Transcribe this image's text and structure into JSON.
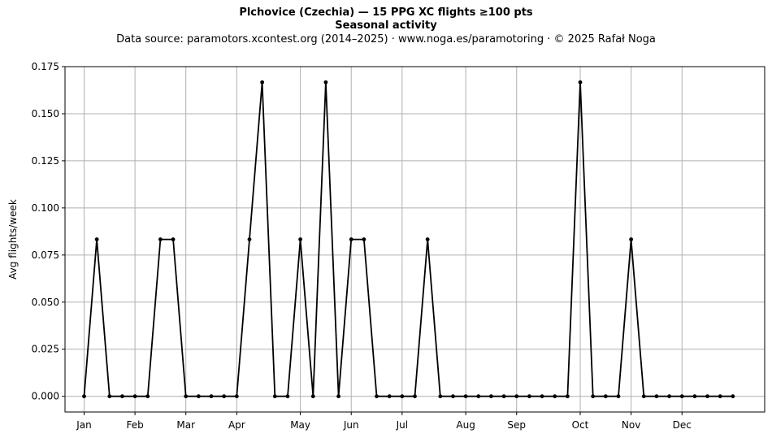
{
  "header": {
    "title": "Plchovice (Czechia)  —  15 PPG XC flights ≥100 pts",
    "subtitle": "Seasonal activity",
    "source": "Data source: paramotors.xcontest.org (2014–2025)  ·  www.noga.es/paramotoring  ·  © 2025 Rafał Noga"
  },
  "chart_data": {
    "type": "line",
    "title": "Plchovice (Czechia)  —  15 PPG XC flights ≥100 pts",
    "subtitle": "Seasonal activity",
    "xlabel": "",
    "ylabel": "Avg flights/week",
    "ylim": [
      -0.00833,
      0.175
    ],
    "xlim": [
      -1.5,
      53.5
    ],
    "y_ticks": [
      0.0,
      0.025,
      0.05,
      0.075,
      0.1,
      0.125,
      0.15,
      0.175
    ],
    "y_tick_labels": [
      "0.000",
      "0.025",
      "0.050",
      "0.075",
      "0.100",
      "0.125",
      "0.150",
      "0.175"
    ],
    "x_ticks": [
      0,
      4,
      8,
      12,
      17,
      21,
      25,
      30,
      34,
      39,
      43,
      47
    ],
    "x_tick_labels": [
      "Jan",
      "Feb",
      "Mar",
      "Apr",
      "May",
      "Jun",
      "Jul",
      "Aug",
      "Sep",
      "Oct",
      "Nov",
      "Dec"
    ],
    "grid": true,
    "line_color": "#000000",
    "series": [
      {
        "x": [
          0,
          1,
          2,
          3,
          4,
          5,
          6,
          7,
          8,
          9,
          10,
          11,
          12,
          13,
          14,
          15,
          16,
          17,
          18,
          19,
          20,
          21,
          22,
          23,
          24,
          25,
          26,
          27,
          28,
          29,
          30,
          31,
          32,
          33,
          34,
          35,
          36,
          37,
          38,
          39,
          40,
          41,
          42,
          43,
          44,
          45,
          46,
          47,
          48,
          49,
          50,
          51
        ],
        "values": [
          0,
          0.0833,
          0,
          0,
          0,
          0,
          0.0833,
          0.0833,
          0,
          0,
          0,
          0,
          0,
          0.0833,
          0.1667,
          0,
          0,
          0.0833,
          0,
          0.1667,
          0,
          0.0833,
          0.0833,
          0,
          0,
          0,
          0,
          0.0833,
          0,
          0,
          0,
          0,
          0,
          0,
          0,
          0,
          0,
          0,
          0,
          0.1667,
          0,
          0,
          0,
          0.0833,
          0,
          0,
          0,
          0,
          0,
          0,
          0,
          0
        ]
      }
    ]
  }
}
